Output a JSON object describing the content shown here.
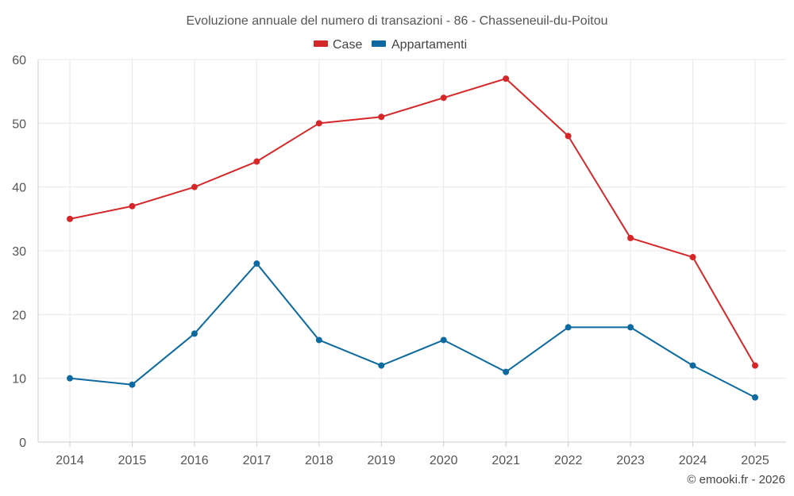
{
  "chart_data": {
    "type": "line",
    "title": "Evoluzione annuale del numero di transazioni - 86 - Chasseneuil-du-Poitou",
    "categories": [
      "2014",
      "2015",
      "2016",
      "2017",
      "2018",
      "2019",
      "2020",
      "2021",
      "2022",
      "2023",
      "2024",
      "2025"
    ],
    "series": [
      {
        "name": "Case",
        "color": "#d62728",
        "values": [
          35,
          37,
          40,
          44,
          50,
          51,
          54,
          57,
          48,
          32,
          29,
          12
        ]
      },
      {
        "name": "Appartamenti",
        "color": "#0c6aa0",
        "values": [
          10,
          9,
          17,
          28,
          16,
          12,
          16,
          11,
          18,
          18,
          12,
          7
        ]
      }
    ],
    "ylim": [
      0,
      60
    ],
    "yticks": [
      "0",
      "10",
      "20",
      "30",
      "40",
      "50",
      "60"
    ],
    "grid": true,
    "legend": "top-center",
    "xlabel": "",
    "ylabel": ""
  },
  "credit": "© emooki.fr - 2026"
}
